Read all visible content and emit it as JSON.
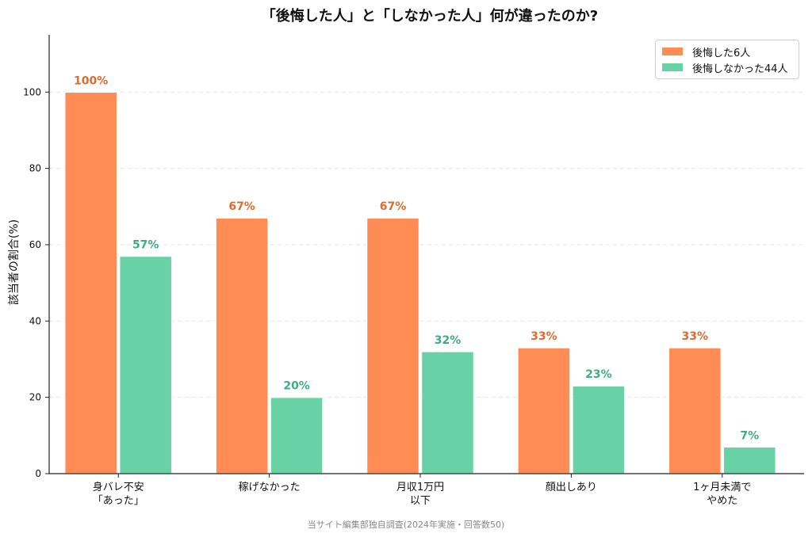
{
  "chart_data": {
    "type": "bar",
    "title": "「後悔した人」と「しなかった人」何が違ったのか?",
    "ylabel": "該当者の割合(%)",
    "xlabel": "",
    "ylim": [
      0,
      115
    ],
    "yticks": [
      "0",
      "20",
      "40",
      "60",
      "80",
      "100"
    ],
    "grid": "horizontal-dashed",
    "legend_position": "top-right",
    "categories": [
      "身バレ不安\n「あった」",
      "稼げなかった",
      "月収1万円\n以下",
      "顔出しあり",
      "1ヶ月未満で\nやめた"
    ],
    "series": [
      {
        "name": "後悔した6人",
        "color": "#FF8C55",
        "label_color": "#E0692C",
        "values": [
          100,
          67,
          67,
          33,
          33
        ],
        "labels": [
          "100%",
          "67%",
          "67%",
          "33%",
          "33%"
        ]
      },
      {
        "name": "後悔しなかった44人",
        "color": "#68D2A6",
        "label_color": "#3DAE82",
        "values": [
          57,
          20,
          32,
          23,
          7
        ],
        "labels": [
          "57%",
          "20%",
          "32%",
          "23%",
          "7%"
        ]
      }
    ],
    "source": "当サイト編集部独自調査(2024年実施・回答数50)"
  }
}
